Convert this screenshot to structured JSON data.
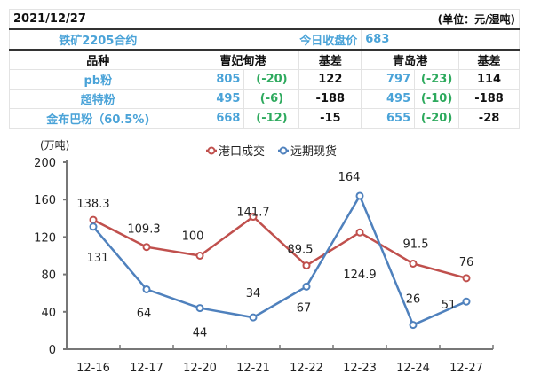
{
  "table": {
    "date": "2021/12/27",
    "unit": "(单位：元/湿吨)",
    "contract": "铁矿2205合约",
    "close_label": "今日收盘价",
    "close_value": "683",
    "headers": {
      "variety": "品种",
      "port1": "曹妃甸港",
      "basis1": "基差",
      "port2": "青岛港",
      "basis2": "基差"
    },
    "rows": [
      {
        "name": "pb粉",
        "p1": "805",
        "c1": "(-20)",
        "b1": "122",
        "p2": "797",
        "c2": "(-23)",
        "b2": "114"
      },
      {
        "name": "超特粉",
        "p1": "495",
        "c1": "(-6)",
        "b1": "-188",
        "p2": "495",
        "c2": "(-10)",
        "b2": "-188"
      },
      {
        "name": "金布巴粉（60.5%)",
        "p1": "668",
        "c1": "(-12)",
        "b1": "-15",
        "p2": "655",
        "c2": "(-20)",
        "b2": "-28"
      }
    ]
  },
  "colors": {
    "blue_text": "#4aa3d8",
    "green_text": "#2eaa5e",
    "series_red": "#c0504d",
    "series_blue": "#4f81bd"
  },
  "chart_data": {
    "type": "line",
    "title": "",
    "xlabel": "",
    "ylabel": "(万吨)",
    "ylim": [
      0,
      200
    ],
    "yticks": [
      0,
      40,
      80,
      120,
      160,
      200
    ],
    "grid": false,
    "legend_position": "top",
    "categories": [
      "12-16",
      "12-17",
      "12-20",
      "12-21",
      "12-22",
      "12-23",
      "12-24",
      "12-27"
    ],
    "series": [
      {
        "name": "港口成交",
        "color": "#c0504d",
        "values": [
          138.3,
          109.3,
          100,
          141.7,
          89.5,
          124.9,
          91.5,
          76
        ]
      },
      {
        "name": "远期现货",
        "color": "#4f81bd",
        "values": [
          131,
          64,
          44,
          34,
          67,
          164,
          26,
          51
        ]
      }
    ]
  }
}
